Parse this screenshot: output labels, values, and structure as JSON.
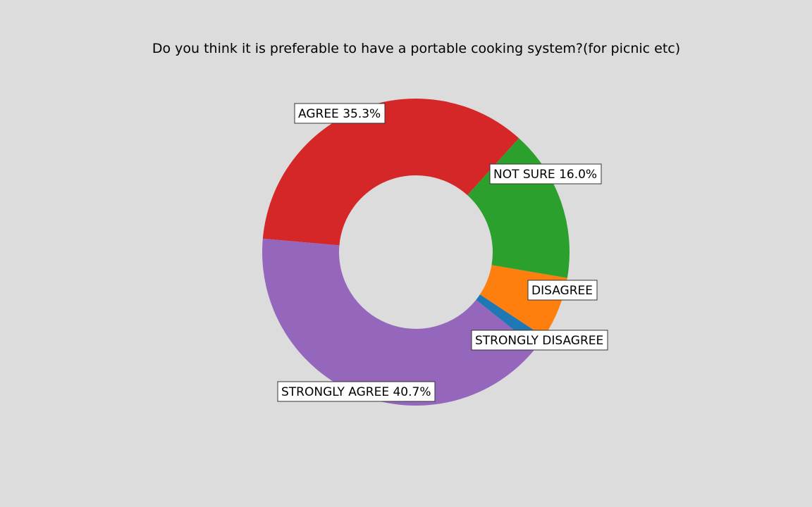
{
  "chart_data": {
    "type": "pie",
    "title": "Do you think it is preferable to have a portable cooking system?(for picnic etc)",
    "donut": true,
    "slices": [
      {
        "label": "STRONGLY DISAGREE",
        "value": 1.4,
        "pct_text": "",
        "color": "#1f77b4"
      },
      {
        "label": "DISAGREE",
        "value": 6.6,
        "pct_text": "",
        "color": "#ff7f0e"
      },
      {
        "label": "NOT SURE",
        "value": 16.0,
        "pct_text": "16.0%",
        "color": "#2ca02c"
      },
      {
        "label": "AGREE",
        "value": 35.3,
        "pct_text": "35.3%",
        "color": "#d62728"
      },
      {
        "label": "STRONGLY AGREE",
        "value": 40.7,
        "pct_text": "40.7%",
        "color": "#9467bd"
      }
    ]
  }
}
